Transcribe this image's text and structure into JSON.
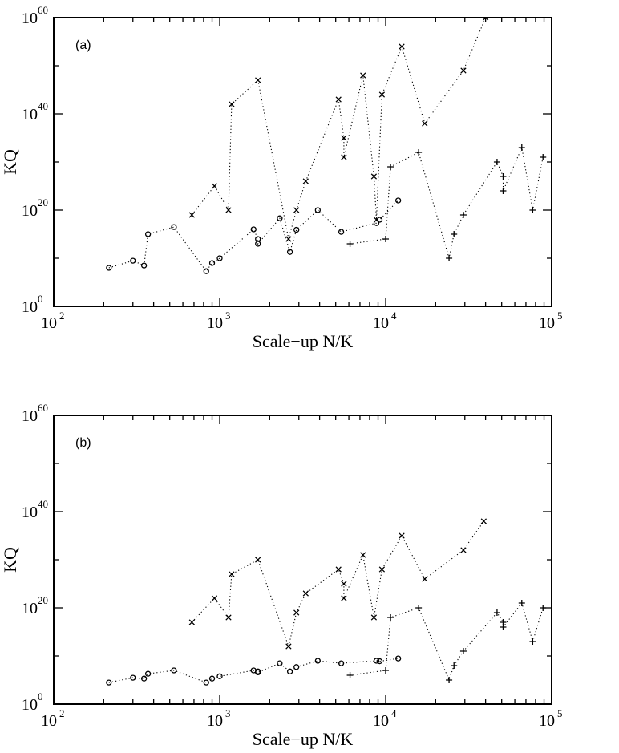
{
  "chart_data": [
    {
      "type": "scatter",
      "panel_label": "(a)",
      "xlabel": "Scale−up N/K",
      "ylabel": "KQ",
      "xscale": "log",
      "yscale": "log",
      "xlim": [
        100,
        100000
      ],
      "ylim": [
        1,
        1e+60
      ],
      "x_ticks": [
        {
          "base": "10",
          "exp": "2"
        },
        {
          "base": "10",
          "exp": "3"
        },
        {
          "base": "10",
          "exp": "4"
        },
        {
          "base": "10",
          "exp": "5"
        }
      ],
      "y_ticks": [
        {
          "base": "10",
          "exp": "0",
          "value": 1
        },
        {
          "base": "10",
          "exp": "20",
          "value": 1e+20
        },
        {
          "base": "10",
          "exp": "40",
          "value": 1e+40
        },
        {
          "base": "10",
          "exp": "60",
          "value": 1e+60
        }
      ],
      "grid": false,
      "series": [
        {
          "marker": "circle",
          "points": [
            [
              215,
              100000000.0
            ],
            [
              300,
              3000000000.0
            ],
            [
              350,
              300000000.0
            ],
            [
              370,
              1000000000000000.0
            ],
            [
              530,
              3e+16
            ],
            [
              830,
              20000000.0
            ],
            [
              900,
              1000000000.0
            ],
            [
              1000,
              10000000000.0
            ],
            [
              1600,
              1e+16
            ],
            [
              1700,
              100000000000000.0
            ],
            [
              1700,
              10000000000000.0
            ],
            [
              2300,
              2e+18
            ],
            [
              2650,
              200000000000.0
            ],
            [
              2900,
              8000000000000000.0
            ],
            [
              3900,
              1e+20
            ],
            [
              5400,
              3000000000000000.0
            ],
            [
              8800,
              2e+17
            ],
            [
              9200,
              1e+18
            ],
            [
              11900,
              1e+22
            ]
          ]
        },
        {
          "marker": "x",
          "points": [
            [
              680,
              1e+19
            ],
            [
              930,
              1e+25
            ],
            [
              1130,
              1e+20
            ],
            [
              1180,
              1e+42
            ],
            [
              1700,
              1e+47
            ],
            [
              2600,
              100000000000000.0
            ],
            [
              2900,
              1e+20
            ],
            [
              3300,
              1e+26
            ],
            [
              5200,
              1e+43
            ],
            [
              5600,
              1e+35
            ],
            [
              5600,
              1e+31
            ],
            [
              7300,
              1e+48
            ],
            [
              8500,
              1e+27
            ],
            [
              8800,
              1e+18
            ],
            [
              9500,
              1e+44
            ],
            [
              12500,
              1e+54
            ],
            [
              17200,
              1e+38
            ],
            [
              29400,
              1e+49
            ],
            [
              40000,
              1e+60
            ]
          ]
        },
        {
          "marker": "plus",
          "points": [
            [
              6100,
              10000000000000.0
            ],
            [
              10000,
              100000000000000.0
            ],
            [
              10700,
              1e+29
            ],
            [
              15800,
              1e+32
            ],
            [
              24100,
              10000000000.0
            ],
            [
              25800,
              1000000000000000.0
            ],
            [
              29400,
              1e+19
            ],
            [
              46900,
              1e+30
            ],
            [
              51000,
              1e+27
            ],
            [
              51000,
              1e+24
            ],
            [
              66100,
              1e+33
            ],
            [
              76900,
              1e+20
            ],
            [
              88700,
              1e+31
            ]
          ]
        }
      ]
    },
    {
      "type": "scatter",
      "panel_label": "(b)",
      "xlabel": "Scale−up N/K",
      "ylabel": "KQ",
      "xscale": "log",
      "yscale": "log",
      "xlim": [
        100,
        100000
      ],
      "ylim": [
        1,
        1e+60
      ],
      "x_ticks": [
        {
          "base": "10",
          "exp": "2"
        },
        {
          "base": "10",
          "exp": "3"
        },
        {
          "base": "10",
          "exp": "4"
        },
        {
          "base": "10",
          "exp": "5"
        }
      ],
      "y_ticks": [
        {
          "base": "10",
          "exp": "0",
          "value": 1
        },
        {
          "base": "10",
          "exp": "20",
          "value": 1e+20
        },
        {
          "base": "10",
          "exp": "40",
          "value": 1e+40
        },
        {
          "base": "10",
          "exp": "60",
          "value": 1e+60
        }
      ],
      "grid": false,
      "series": [
        {
          "marker": "circle",
          "points": [
            [
              215,
              30000.0
            ],
            [
              300,
              300000.0
            ],
            [
              350,
              200000.0
            ],
            [
              370,
              2000000.0
            ],
            [
              530,
              10000000.0
            ],
            [
              830,
              30000.0
            ],
            [
              900,
              200000.0
            ],
            [
              1000,
              600000.0
            ],
            [
              1600,
              10000000.0
            ],
            [
              1700,
              6000000.0
            ],
            [
              1700,
              4000000.0
            ],
            [
              2300,
              300000000.0
            ],
            [
              2650,
              6000000.0
            ],
            [
              2900,
              50000000.0
            ],
            [
              3900,
              1000000000.0
            ],
            [
              5400,
              300000000.0
            ],
            [
              8800,
              1000000000.0
            ],
            [
              9200,
              800000000.0
            ],
            [
              11900,
              3000000000.0
            ]
          ]
        },
        {
          "marker": "x",
          "points": [
            [
              680,
              1e+17
            ],
            [
              930,
              1e+22
            ],
            [
              1130,
              1e+18
            ],
            [
              1180,
              1e+27
            ],
            [
              1700,
              1e+30
            ],
            [
              2600,
              1000000000000.0
            ],
            [
              2900,
              1e+19
            ],
            [
              3300,
              1e+23
            ],
            [
              5200,
              1e+28
            ],
            [
              5600,
              1e+25
            ],
            [
              5600,
              1e+22
            ],
            [
              7300,
              1e+31
            ],
            [
              8500,
              1e+18
            ],
            [
              9500,
              1e+28
            ],
            [
              12500,
              1e+35
            ],
            [
              17200,
              1e+26
            ],
            [
              29400,
              1e+32
            ],
            [
              39000,
              1e+38
            ]
          ]
        },
        {
          "marker": "plus",
          "points": [
            [
              6100,
              1000000.0
            ],
            [
              10000,
              10000000.0
            ],
            [
              10700,
              1e+18
            ],
            [
              15800,
              1e+20
            ],
            [
              24100,
              100000.0
            ],
            [
              25800,
              100000000.0
            ],
            [
              29400,
              100000000000.0
            ],
            [
              46900,
              1e+19
            ],
            [
              51000,
              1e+17
            ],
            [
              51000,
              1e+16
            ],
            [
              66100,
              1e+21
            ],
            [
              76900,
              10000000000000.0
            ],
            [
              88700,
              1e+20
            ]
          ]
        }
      ]
    }
  ]
}
